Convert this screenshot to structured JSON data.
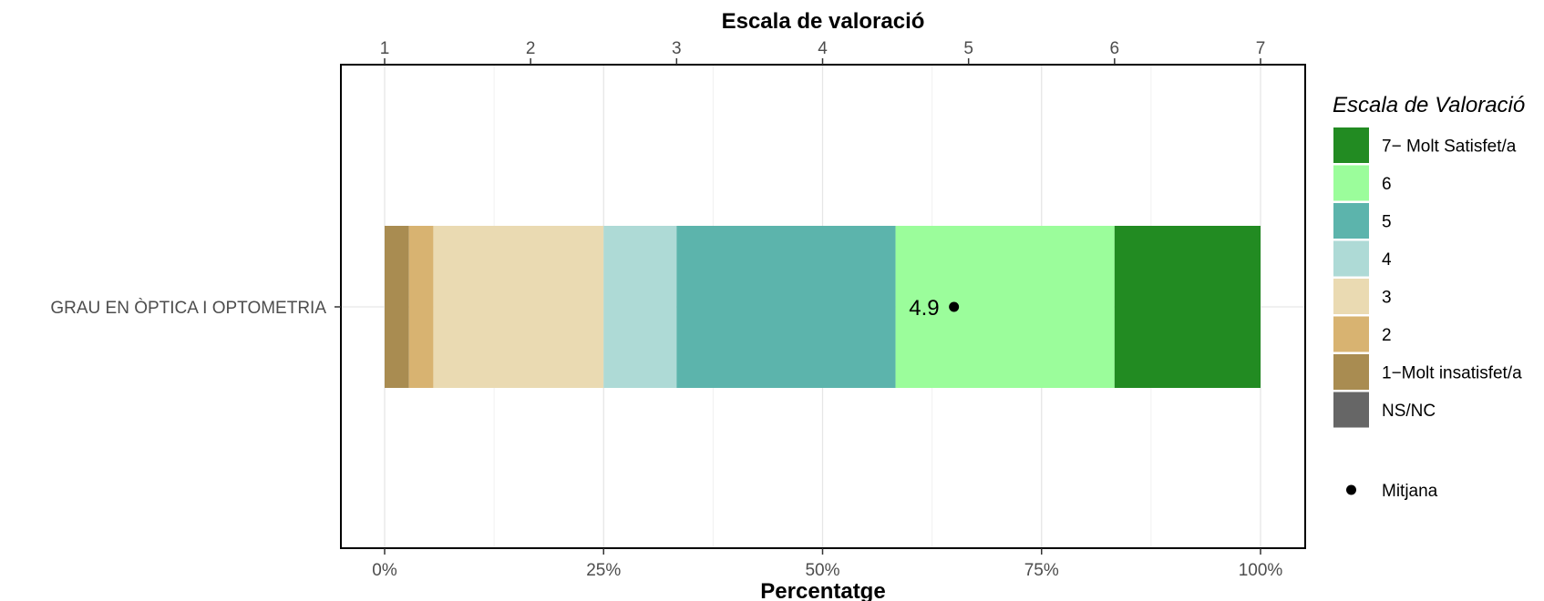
{
  "chart_data": {
    "type": "bar",
    "orientation": "horizontal-stacked",
    "categories": [
      "GRAU EN ÒPTICA I OPTOMETRIA"
    ],
    "series": [
      {
        "name": "1−Molt insatisfet/a",
        "color": "#A98C51",
        "values": [
          2.78
        ]
      },
      {
        "name": "2",
        "color": "#D8B371",
        "values": [
          2.78
        ]
      },
      {
        "name": "3",
        "color": "#EADAB2",
        "values": [
          19.44
        ]
      },
      {
        "name": "4",
        "color": "#AEDAD6",
        "values": [
          8.33
        ]
      },
      {
        "name": "5",
        "color": "#5CB4AC",
        "values": [
          25.0
        ]
      },
      {
        "name": "6",
        "color": "#9BFD9B",
        "values": [
          25.0
        ]
      },
      {
        "name": "7− Molt Satisfet/a",
        "color": "#228B22",
        "values": [
          16.67
        ]
      }
    ],
    "mean": {
      "value": 4.9,
      "label": "4.9"
    },
    "xlabel": "Percentatge",
    "x_ticks": [
      "0%",
      "25%",
      "50%",
      "75%",
      "100%"
    ],
    "xlim": [
      0,
      100
    ],
    "secondary_axis": {
      "title": "Escala de valoració",
      "ticks": [
        "1",
        "2",
        "3",
        "4",
        "5",
        "6",
        "7"
      ],
      "range": [
        1,
        7
      ]
    },
    "legend": {
      "title": "Escala de Valoració",
      "position": "right",
      "entries": [
        {
          "label": "7− Molt Satisfet/a",
          "color": "#228B22"
        },
        {
          "label": "6",
          "color": "#9BFD9B"
        },
        {
          "label": "5",
          "color": "#5CB4AC"
        },
        {
          "label": "4",
          "color": "#AEDAD6"
        },
        {
          "label": "3",
          "color": "#EADAB2"
        },
        {
          "label": "2",
          "color": "#D8B371"
        },
        {
          "label": "1−Molt insatisfet/a",
          "color": "#A98C51"
        },
        {
          "label": "NS/NC",
          "color": "#666666"
        }
      ],
      "mean_entry": "Mitjana"
    },
    "grid": true
  }
}
